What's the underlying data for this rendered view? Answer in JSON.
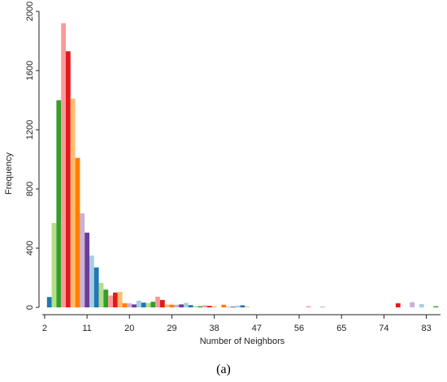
{
  "caption": "(a)",
  "chart_data": {
    "type": "bar",
    "title": "",
    "xlabel": "Number of Neighbors",
    "ylabel": "Frequency",
    "xlim": [
      1.5,
      86
    ],
    "ylim": [
      0,
      2000
    ],
    "x_ticks": [
      2,
      11,
      20,
      29,
      38,
      47,
      56,
      65,
      74,
      83
    ],
    "y_ticks": [
      0,
      400,
      800,
      1200,
      1600,
      2000
    ],
    "grid": false,
    "legend": "none",
    "bins": [
      {
        "x": 3,
        "value": 70,
        "color": "#1F78B4"
      },
      {
        "x": 4,
        "value": 570,
        "color": "#B2DF8A"
      },
      {
        "x": 5,
        "value": 1400,
        "color": "#33A02C"
      },
      {
        "x": 6,
        "value": 1920,
        "color": "#FB9A99"
      },
      {
        "x": 7,
        "value": 1730,
        "color": "#E31A1C"
      },
      {
        "x": 8,
        "value": 1410,
        "color": "#FDBF6F"
      },
      {
        "x": 9,
        "value": 1010,
        "color": "#FF7F00"
      },
      {
        "x": 10,
        "value": 635,
        "color": "#CAB2D6"
      },
      {
        "x": 11,
        "value": 505,
        "color": "#6A3D9A"
      },
      {
        "x": 12,
        "value": 350,
        "color": "#A6CEE3"
      },
      {
        "x": 13,
        "value": 270,
        "color": "#1F78B4"
      },
      {
        "x": 14,
        "value": 165,
        "color": "#B2DF8A"
      },
      {
        "x": 15,
        "value": 120,
        "color": "#33A02C"
      },
      {
        "x": 16,
        "value": 80,
        "color": "#FB9A99"
      },
      {
        "x": 17,
        "value": 100,
        "color": "#E31A1C"
      },
      {
        "x": 18,
        "value": 105,
        "color": "#FDBF6F"
      },
      {
        "x": 19,
        "value": 28,
        "color": "#FF7F00"
      },
      {
        "x": 20,
        "value": 28,
        "color": "#CAB2D6"
      },
      {
        "x": 21,
        "value": 20,
        "color": "#6A3D9A"
      },
      {
        "x": 22,
        "value": 45,
        "color": "#A6CEE3"
      },
      {
        "x": 23,
        "value": 32,
        "color": "#1F78B4"
      },
      {
        "x": 24,
        "value": 30,
        "color": "#B2DF8A"
      },
      {
        "x": 25,
        "value": 38,
        "color": "#33A02C"
      },
      {
        "x": 26,
        "value": 72,
        "color": "#FB9A99"
      },
      {
        "x": 27,
        "value": 50,
        "color": "#E31A1C"
      },
      {
        "x": 28,
        "value": 20,
        "color": "#FDBF6F"
      },
      {
        "x": 29,
        "value": 18,
        "color": "#FF7F00"
      },
      {
        "x": 30,
        "value": 18,
        "color": "#CAB2D6"
      },
      {
        "x": 31,
        "value": 20,
        "color": "#6A3D9A"
      },
      {
        "x": 32,
        "value": 30,
        "color": "#A6CEE3"
      },
      {
        "x": 33,
        "value": 15,
        "color": "#1F78B4"
      },
      {
        "x": 34,
        "value": 8,
        "color": "#B2DF8A"
      },
      {
        "x": 35,
        "value": 8,
        "color": "#33A02C"
      },
      {
        "x": 36,
        "value": 14,
        "color": "#FB9A99"
      },
      {
        "x": 37,
        "value": 10,
        "color": "#E31A1C"
      },
      {
        "x": 38,
        "value": 8,
        "color": "#FDBF6F"
      },
      {
        "x": 40,
        "value": 18,
        "color": "#FF7F00"
      },
      {
        "x": 41,
        "value": 5,
        "color": "#CAB2D6"
      },
      {
        "x": 42,
        "value": 5,
        "color": "#6A3D9A"
      },
      {
        "x": 43,
        "value": 12,
        "color": "#A6CEE3"
      },
      {
        "x": 44,
        "value": 14,
        "color": "#1F78B4"
      },
      {
        "x": 45,
        "value": 6,
        "color": "#B2DF8A"
      },
      {
        "x": 58,
        "value": 8,
        "color": "#FB9A99"
      },
      {
        "x": 61,
        "value": 6,
        "color": "#CAB2D6"
      },
      {
        "x": 77,
        "value": 28,
        "color": "#E31A1C"
      },
      {
        "x": 80,
        "value": 35,
        "color": "#CAB2D6"
      },
      {
        "x": 82,
        "value": 22,
        "color": "#A6CEE3"
      },
      {
        "x": 85,
        "value": 8,
        "color": "#33A02C"
      }
    ]
  }
}
